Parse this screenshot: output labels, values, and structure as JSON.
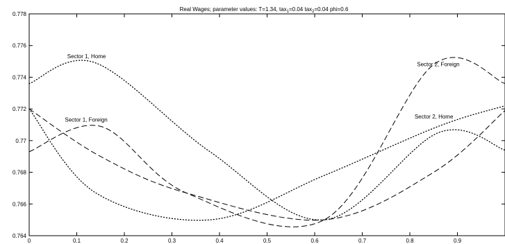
{
  "chart_data": {
    "type": "line",
    "title": "Real Wages; parameter values: T=1.34, tax",
    "title_parts": {
      "t1": "Real Wages; parameter values: T=1.34, tax",
      "s1": "1",
      "t2": "=0.04 tax",
      "s2": "2",
      "t3": "=0.04 phi=0.6"
    },
    "xlabel": "",
    "ylabel": "",
    "xlim": [
      0,
      1
    ],
    "ylim": [
      0.764,
      0.778
    ],
    "x_ticks": [
      "0",
      "0.1",
      "0.2",
      "0.3",
      "0.4",
      "0.5",
      "0.6",
      "0.7",
      "0.8",
      "0.9"
    ],
    "y_ticks": [
      "0.764",
      "0.766",
      "0.768",
      "0.77",
      "0.772",
      "0.774",
      "0.776",
      "0.778"
    ],
    "grid": false,
    "legend": "none",
    "series": [
      {
        "style": "dotted",
        "x": [
          0,
          0.14,
          0.38,
          0.62,
          0.86,
          1.0
        ],
        "y": [
          0.7736,
          0.7749,
          0.7693,
          0.765,
          0.7705,
          0.7694
        ]
      },
      {
        "style": "dotted",
        "x": [
          0,
          0.14,
          0.38,
          0.62,
          0.86,
          1.0
        ],
        "y": [
          0.772,
          0.7667,
          0.765,
          0.7678,
          0.7709,
          0.7722
        ]
      },
      {
        "style": "dashed",
        "x": [
          0,
          0.15,
          0.33,
          0.62,
          0.85,
          1.0
        ],
        "y": [
          0.7693,
          0.7709,
          0.7667,
          0.765,
          0.7748,
          0.7736
        ]
      },
      {
        "style": "dashed",
        "x": [
          0,
          0.15,
          0.33,
          0.62,
          0.85,
          1.0
        ],
        "y": [
          0.772,
          0.769,
          0.7667,
          0.765,
          0.768,
          0.7719
        ]
      }
    ],
    "annotations": [
      {
        "text": "Sector 1, Home",
        "x": 0.08,
        "y": 0.7752
      },
      {
        "text": "Sector 1, Foreign",
        "x": 0.075,
        "y": 0.7712
      },
      {
        "text": "Sector 2, Foreign",
        "x": 0.815,
        "y": 0.7747
      },
      {
        "text": "Sector 2, Home",
        "x": 0.81,
        "y": 0.7714
      }
    ]
  }
}
